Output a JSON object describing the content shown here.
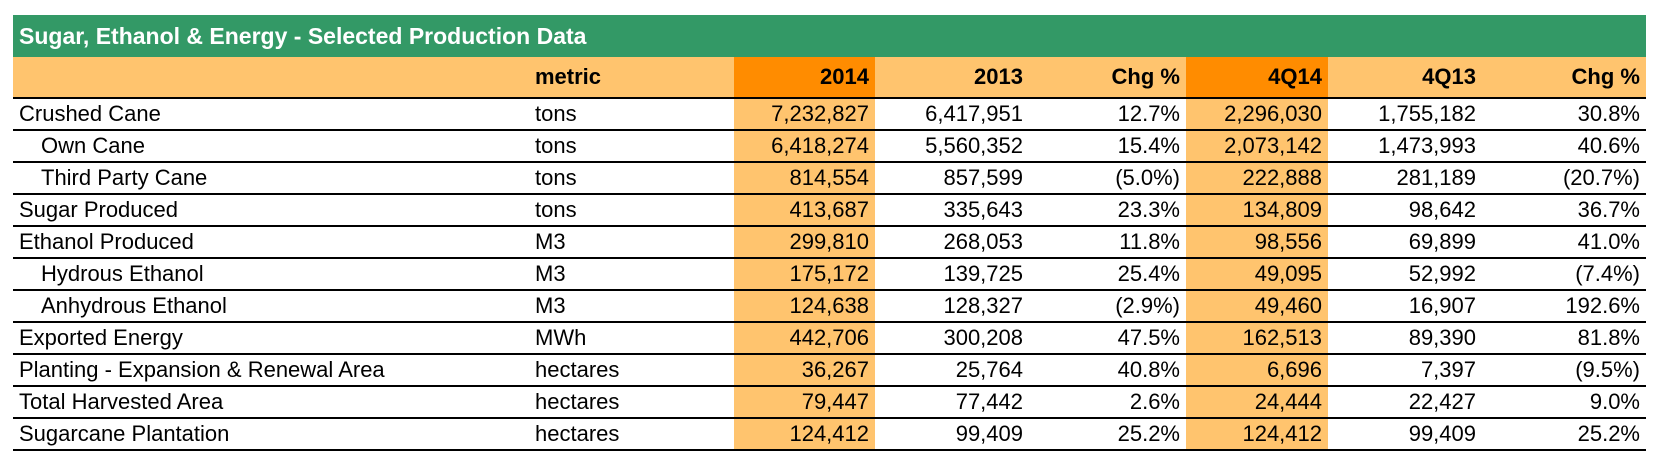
{
  "title": "Sugar, Ethanol & Energy - Selected Production Data",
  "colors": {
    "title_bg": "#339966",
    "header_bg": "#FFC46E",
    "header_strong_bg": "#FF8C00",
    "highlight_bg": "#FFC46E"
  },
  "columns": {
    "label": "",
    "metric": "metric",
    "y2014": "2014",
    "y2013": "2013",
    "chg_year": "Chg %",
    "q4_14": "4Q14",
    "q4_13": "4Q13",
    "chg_quarter": "Chg %"
  },
  "rows": [
    {
      "label": "Crushed Cane",
      "indent": false,
      "metric": "tons",
      "y2014": "7,232,827",
      "y2013": "6,417,951",
      "chg_year": "12.7%",
      "q4_14": "2,296,030",
      "q4_13": "1,755,182",
      "chg_quarter": "30.8%"
    },
    {
      "label": "Own Cane",
      "indent": true,
      "metric": "tons",
      "y2014": "6,418,274",
      "y2013": "5,560,352",
      "chg_year": "15.4%",
      "q4_14": "2,073,142",
      "q4_13": "1,473,993",
      "chg_quarter": "40.6%"
    },
    {
      "label": "Third Party Cane",
      "indent": true,
      "metric": "tons",
      "y2014": "814,554",
      "y2013": "857,599",
      "chg_year": "(5.0%)",
      "q4_14": "222,888",
      "q4_13": "281,189",
      "chg_quarter": "(20.7%)"
    },
    {
      "label": "Sugar Produced",
      "indent": false,
      "metric": "tons",
      "y2014": "413,687",
      "y2013": "335,643",
      "chg_year": "23.3%",
      "q4_14": "134,809",
      "q4_13": "98,642",
      "chg_quarter": "36.7%"
    },
    {
      "label": "Ethanol Produced",
      "indent": false,
      "metric": "M3",
      "y2014": "299,810",
      "y2013": "268,053",
      "chg_year": "11.8%",
      "q4_14": "98,556",
      "q4_13": "69,899",
      "chg_quarter": "41.0%"
    },
    {
      "label": "Hydrous Ethanol",
      "indent": true,
      "metric": "M3",
      "y2014": "175,172",
      "y2013": "139,725",
      "chg_year": "25.4%",
      "q4_14": "49,095",
      "q4_13": "52,992",
      "chg_quarter": "(7.4%)"
    },
    {
      "label": "Anhydrous Ethanol",
      "indent": true,
      "metric": "M3",
      "y2014": "124,638",
      "y2013": "128,327",
      "chg_year": "(2.9%)",
      "q4_14": "49,460",
      "q4_13": "16,907",
      "chg_quarter": "192.6%"
    },
    {
      "label": "Exported Energy",
      "indent": false,
      "metric": "MWh",
      "y2014": "442,706",
      "y2013": "300,208",
      "chg_year": "47.5%",
      "q4_14": "162,513",
      "q4_13": "89,390",
      "chg_quarter": "81.8%"
    },
    {
      "label": "Planting - Expansion & Renewal Area",
      "indent": false,
      "metric": "hectares",
      "y2014": "36,267",
      "y2013": "25,764",
      "chg_year": "40.8%",
      "q4_14": "6,696",
      "q4_13": "7,397",
      "chg_quarter": "(9.5%)"
    },
    {
      "label": "Total Harvested Area",
      "indent": false,
      "metric": "hectares",
      "y2014": "79,447",
      "y2013": "77,442",
      "chg_year": "2.6%",
      "q4_14": "24,444",
      "q4_13": "22,427",
      "chg_quarter": "9.0%"
    },
    {
      "label": "Sugarcane Plantation",
      "indent": false,
      "metric": "hectares",
      "y2014": "124,412",
      "y2013": "99,409",
      "chg_year": "25.2%",
      "q4_14": "124,412",
      "q4_13": "99,409",
      "chg_quarter": "25.2%"
    }
  ]
}
